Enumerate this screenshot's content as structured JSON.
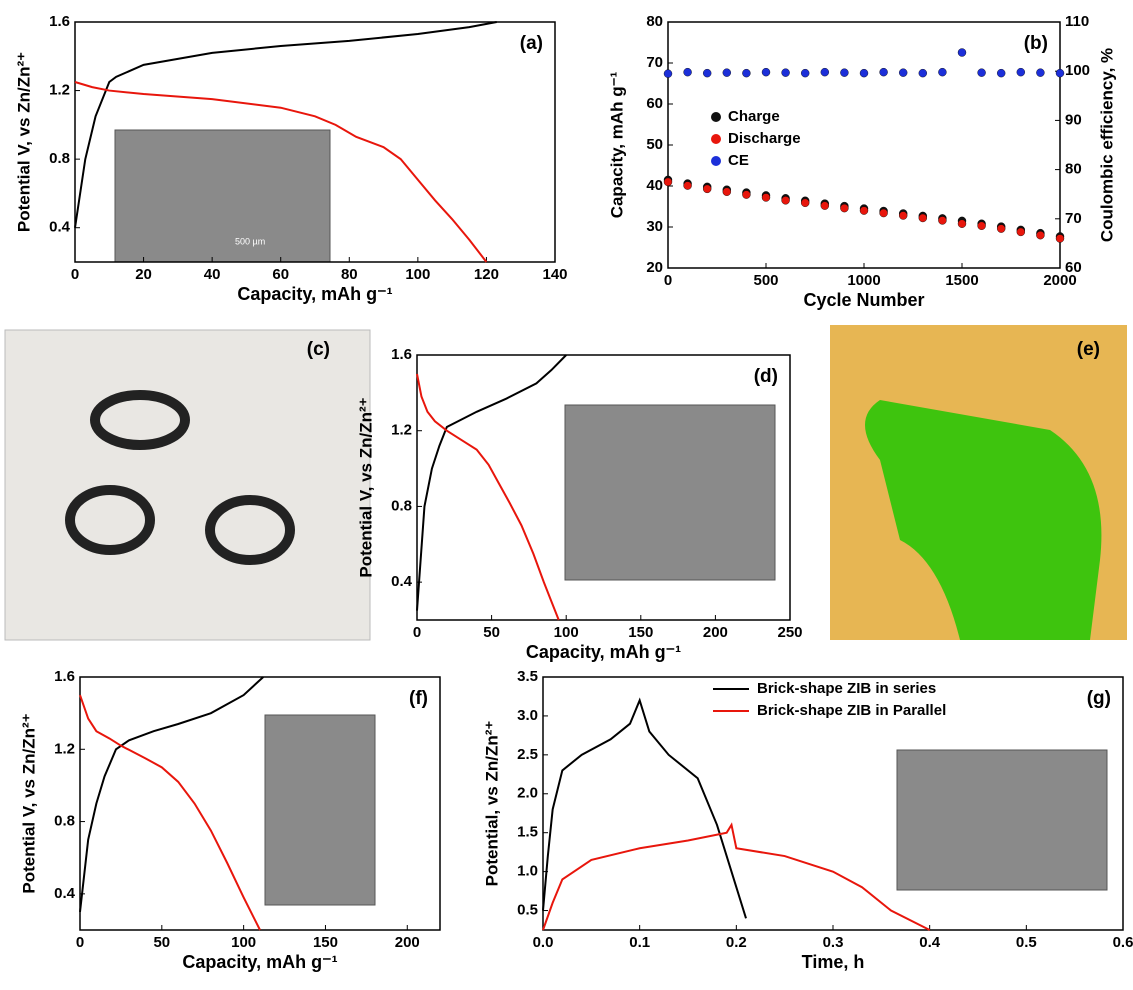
{
  "chart_data": [
    {
      "type": "line",
      "label": "(a)",
      "xlabel": "Capacity, mAh g⁻¹",
      "ylabel": "Potential V, vs Zn/Zn²⁺",
      "xlim": [
        0,
        140
      ],
      "xticks": [
        0,
        20,
        40,
        60,
        80,
        100,
        120,
        140
      ],
      "ylim": [
        0.2,
        1.6
      ],
      "yticks": [
        0.4,
        0.8,
        1.2,
        1.6
      ],
      "inset_text": "500 µm",
      "series": [
        {
          "name": "Charge",
          "color": "#000000",
          "x": [
            0,
            3,
            6,
            10,
            12,
            20,
            40,
            60,
            80,
            100,
            115,
            123
          ],
          "values": [
            0.4,
            0.8,
            1.05,
            1.25,
            1.28,
            1.35,
            1.42,
            1.46,
            1.49,
            1.53,
            1.57,
            1.6
          ]
        },
        {
          "name": "Discharge",
          "color": "#e8160c",
          "x": [
            0,
            5,
            10,
            20,
            40,
            60,
            70,
            76,
            82,
            90,
            95,
            100,
            105,
            110,
            115,
            120
          ],
          "values": [
            1.25,
            1.22,
            1.2,
            1.18,
            1.15,
            1.1,
            1.05,
            1.0,
            0.93,
            0.87,
            0.8,
            0.68,
            0.56,
            0.45,
            0.33,
            0.2
          ]
        }
      ]
    },
    {
      "type": "scatter",
      "label": "(b)",
      "xlabel": "Cycle Number",
      "ylabel": "Capacity, mAh g⁻¹",
      "y2label": "Coulombic efficiency, %",
      "xlim": [
        0,
        2000
      ],
      "xticks": [
        0,
        500,
        1000,
        1500,
        2000
      ],
      "ylim": [
        20,
        80
      ],
      "yticks": [
        20,
        30,
        40,
        50,
        60,
        70,
        80
      ],
      "y2lim": [
        60,
        110
      ],
      "y2ticks": [
        60,
        70,
        80,
        90,
        100,
        110
      ],
      "legend": "center left",
      "x": [
        0,
        100,
        200,
        300,
        400,
        500,
        600,
        700,
        800,
        900,
        1000,
        1100,
        1200,
        1300,
        1400,
        1500,
        1600,
        1700,
        1800,
        1900,
        2000
      ],
      "series": [
        {
          "name": "Charge",
          "color": "#111111",
          "values": [
            41.5,
            40.6,
            39.8,
            39.1,
            38.4,
            37.7,
            37.0,
            36.4,
            35.7,
            35.1,
            34.5,
            33.9,
            33.3,
            32.7,
            32.1,
            31.5,
            30.8,
            30.1,
            29.3,
            28.5,
            27.7
          ]
        },
        {
          "name": "Discharge",
          "color": "#e8160c",
          "values": [
            41.0,
            40.1,
            39.3,
            38.6,
            37.9,
            37.2,
            36.5,
            35.9,
            35.2,
            34.6,
            34.0,
            33.4,
            32.8,
            32.2,
            31.6,
            30.8,
            30.3,
            29.6,
            28.8,
            28.0,
            27.2
          ]
        },
        {
          "name": "CE",
          "color": "#1c2fd9",
          "axis": "y2",
          "values": [
            99.5,
            99.8,
            99.6,
            99.7,
            99.6,
            99.8,
            99.7,
            99.6,
            99.8,
            99.7,
            99.6,
            99.8,
            99.7,
            99.6,
            99.8,
            103.8,
            99.7,
            99.6,
            99.8,
            99.7,
            99.6
          ]
        }
      ]
    },
    {
      "type": "line",
      "label": "(d)",
      "xlabel": "Capacity, mAh g⁻¹",
      "ylabel": "Potential V, vs Zn/Zn²⁺",
      "xlim": [
        0,
        250
      ],
      "xticks": [
        0,
        50,
        100,
        150,
        200,
        250
      ],
      "ylim": [
        0.2,
        1.6
      ],
      "yticks": [
        0.4,
        0.8,
        1.2,
        1.6
      ],
      "series": [
        {
          "name": "Charge",
          "color": "#000000",
          "x": [
            0,
            5,
            10,
            15,
            20,
            30,
            40,
            60,
            80,
            90,
            100
          ],
          "values": [
            0.25,
            0.8,
            1.0,
            1.12,
            1.22,
            1.26,
            1.3,
            1.37,
            1.45,
            1.52,
            1.6
          ]
        },
        {
          "name": "Discharge",
          "color": "#e8160c",
          "x": [
            0,
            3,
            7,
            12,
            20,
            30,
            40,
            48,
            55,
            62,
            70,
            78,
            85,
            90,
            95
          ],
          "values": [
            1.5,
            1.38,
            1.3,
            1.25,
            1.2,
            1.15,
            1.1,
            1.02,
            0.92,
            0.82,
            0.7,
            0.55,
            0.4,
            0.3,
            0.2
          ]
        }
      ]
    },
    {
      "type": "line",
      "label": "(f)",
      "xlabel": "Capacity, mAh g⁻¹",
      "ylabel": "Potential V, vs Zn/Zn²⁺",
      "xlim": [
        0,
        220
      ],
      "xticks": [
        0,
        50,
        100,
        150,
        200
      ],
      "ylim": [
        0.2,
        1.6
      ],
      "yticks": [
        0.4,
        0.8,
        1.2,
        1.6
      ],
      "series": [
        {
          "name": "Charge",
          "color": "#000000",
          "x": [
            0,
            5,
            10,
            15,
            22,
            30,
            45,
            60,
            80,
            100,
            112
          ],
          "values": [
            0.3,
            0.7,
            0.9,
            1.05,
            1.2,
            1.25,
            1.3,
            1.34,
            1.4,
            1.5,
            1.6
          ]
        },
        {
          "name": "Discharge",
          "color": "#e8160c",
          "x": [
            0,
            5,
            10,
            18,
            25,
            40,
            50,
            60,
            70,
            80,
            90,
            100,
            110
          ],
          "values": [
            1.5,
            1.37,
            1.3,
            1.26,
            1.22,
            1.15,
            1.1,
            1.02,
            0.9,
            0.75,
            0.57,
            0.38,
            0.2
          ]
        }
      ]
    },
    {
      "type": "line",
      "label": "(g)",
      "xlabel": "Time, h",
      "ylabel": "Potential, vs Zn/Zn²⁺",
      "xlim": [
        0,
        0.6
      ],
      "xticks": [
        {
          "value": 0,
          "label": "0.0"
        },
        0.1,
        0.2,
        0.3,
        0.4,
        0.5,
        0.6
      ],
      "ylim": [
        0.25,
        3.5
      ],
      "yticks": [
        0.5,
        {
          "value": 1,
          "label": "1.0"
        },
        1.5,
        {
          "value": 2,
          "label": "2.0"
        },
        2.5,
        {
          "value": 3,
          "label": "3.0"
        },
        3.5
      ],
      "legend": "upper right",
      "series": [
        {
          "name": "Brick-shape ZIB in series",
          "color": "#000000",
          "x": [
            0,
            0.005,
            0.01,
            0.02,
            0.04,
            0.07,
            0.09,
            0.1,
            0.11,
            0.13,
            0.16,
            0.18,
            0.2,
            0.21
          ],
          "values": [
            0.5,
            1.2,
            1.8,
            2.3,
            2.5,
            2.7,
            2.9,
            3.2,
            2.8,
            2.5,
            2.2,
            1.6,
            0.8,
            0.4
          ]
        },
        {
          "name": "Brick-shape ZIB in Parallel",
          "color": "#e8160c",
          "x": [
            0,
            0.01,
            0.02,
            0.05,
            0.1,
            0.15,
            0.19,
            0.195,
            0.2,
            0.25,
            0.3,
            0.33,
            0.36,
            0.4
          ],
          "values": [
            0.25,
            0.6,
            0.9,
            1.15,
            1.3,
            1.4,
            1.5,
            1.6,
            1.3,
            1.2,
            1.0,
            0.8,
            0.5,
            0.25
          ]
        }
      ]
    }
  ],
  "photos": [
    {
      "label": "(c)"
    },
    {
      "label": "(e)"
    }
  ]
}
